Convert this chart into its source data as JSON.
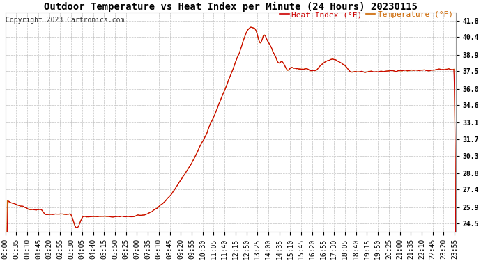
{
  "title": "Outdoor Temperature vs Heat Index per Minute (24 Hours) 20230115",
  "copyright": "Copyright 2023 Cartronics.com",
  "legend_heat": "Heat Index (°F)",
  "legend_temp": "Temperature (°F)",
  "heat_color": "#cc0000",
  "temp_color": "#cc6600",
  "bg_color": "#ffffff",
  "grid_color": "#bbbbbb",
  "yticks": [
    24.5,
    25.9,
    27.4,
    28.8,
    30.3,
    31.7,
    33.1,
    34.6,
    36.0,
    37.5,
    38.9,
    40.4,
    41.8
  ],
  "ymin": 23.8,
  "ymax": 42.5,
  "title_fontsize": 10,
  "legend_fontsize": 8,
  "tick_fontsize": 7,
  "copyright_fontsize": 7
}
